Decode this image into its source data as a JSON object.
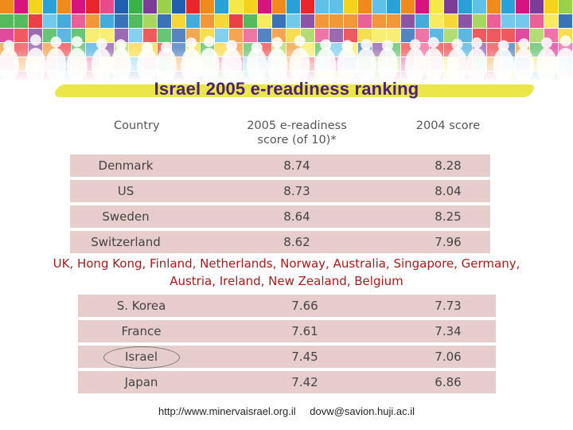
{
  "title": "Israel 2005 e-readiness ranking",
  "colors": {
    "title": "#4a2178",
    "title_brush": "#ebe64a",
    "row_shade": "#e7cccc",
    "middle_text": "#b01818"
  },
  "table_top": {
    "headers": {
      "country": "Country",
      "score_2005_line1": "2005 e-readiness",
      "score_2005_line2": "score (of 10)*",
      "score_2004": "2004 score"
    },
    "rows": [
      {
        "country": "Denmark",
        "score_2005": "8.74",
        "score_2004": "8.28"
      },
      {
        "country": "US",
        "score_2005": "8.73",
        "score_2004": "8.04"
      },
      {
        "country": "Sweden",
        "score_2005": "8.64",
        "score_2004": "8.25"
      },
      {
        "country": "Switzerland",
        "score_2005": "8.62",
        "score_2004": "7.96"
      }
    ]
  },
  "other_countries": {
    "line1": "UK, Hong Kong, Finland, Netherlands, Norway, Australia, Singapore, Germany,",
    "line2": "Austria, Ireland, New Zealand, Belgium"
  },
  "table_bottom": {
    "rows": [
      {
        "country": "S. Korea",
        "score_2005": "7.66",
        "score_2004": "7.73"
      },
      {
        "country": "France",
        "score_2005": "7.61",
        "score_2004": "7.34"
      },
      {
        "country": "Israel",
        "score_2005": "7.45",
        "score_2004": "7.06",
        "highlighted": true
      },
      {
        "country": "Japan",
        "score_2005": "7.42",
        "score_2004": "6.86"
      }
    ]
  },
  "footer": {
    "url": "http://www.minervaisrael.org.il",
    "email": "dovw@savion.huji.ac.il"
  }
}
